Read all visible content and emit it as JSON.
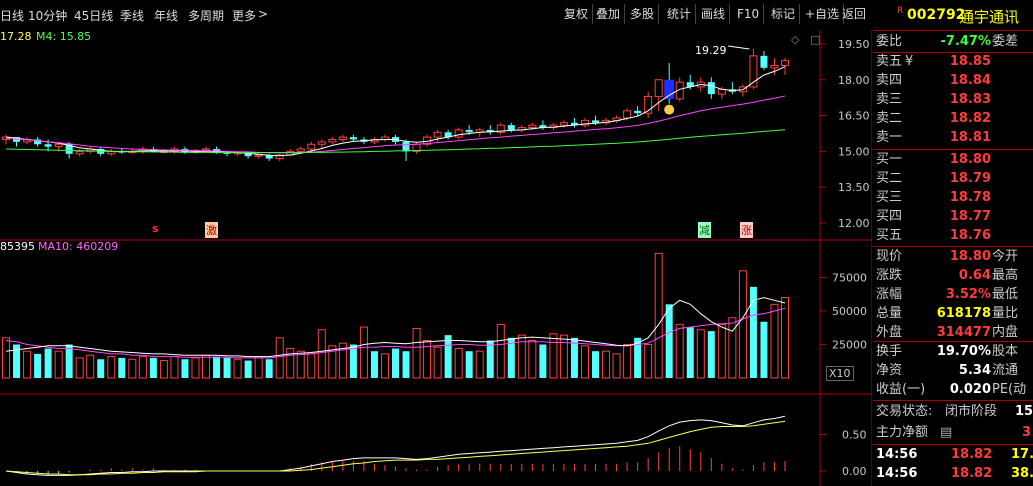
{
  "toolbar": {
    "periods": [
      "日线",
      "10分钟",
      "45日线",
      "季线",
      "年线",
      "多周期",
      "更多"
    ],
    "buttons": [
      "复权",
      "叠加",
      "多股",
      "统计",
      "画线",
      "F10",
      "标记",
      "+自选",
      "返回"
    ]
  },
  "price_chart": {
    "ma_legend_a": "17.28",
    "ma_legend_b": "M4: 15.85",
    "peak_label": "19.29",
    "marker_icons": [
      "s",
      "激",
      "减",
      "涨"
    ]
  },
  "volume_chart": {
    "legend_a": "85395",
    "legend_b": "MA10: 460209",
    "scale_note": "X10"
  },
  "chart_data": [
    {
      "type": "candlestick",
      "ylim": [
        11.5,
        20.0
      ],
      "yticks": [
        "19.50",
        "18.00",
        "16.50",
        "15.00",
        "13.50",
        "12.00"
      ],
      "candles": [
        [
          15.5,
          15.7,
          15.3,
          15.6
        ],
        [
          15.6,
          15.6,
          15.2,
          15.4
        ],
        [
          15.4,
          15.6,
          15.3,
          15.5
        ],
        [
          15.5,
          15.6,
          15.2,
          15.3
        ],
        [
          15.3,
          15.5,
          15.0,
          15.2
        ],
        [
          15.2,
          15.4,
          15.0,
          15.3
        ],
        [
          15.3,
          15.4,
          14.7,
          14.9
        ],
        [
          14.9,
          15.1,
          14.8,
          15.0
        ],
        [
          15.0,
          15.2,
          14.9,
          15.1
        ],
        [
          15.1,
          15.2,
          14.8,
          14.9
        ],
        [
          14.9,
          15.1,
          14.8,
          15.0
        ],
        [
          15.0,
          15.1,
          14.9,
          14.95
        ],
        [
          14.95,
          15.1,
          14.9,
          15.0
        ],
        [
          15.0,
          15.2,
          14.9,
          15.1
        ],
        [
          15.1,
          15.2,
          14.95,
          15.0
        ],
        [
          15.0,
          15.1,
          14.9,
          15.0
        ],
        [
          15.0,
          15.2,
          14.9,
          15.1
        ],
        [
          15.1,
          15.2,
          14.9,
          14.95
        ],
        [
          14.95,
          15.1,
          14.9,
          15.05
        ],
        [
          15.05,
          15.2,
          14.95,
          15.1
        ],
        [
          15.1,
          15.2,
          14.9,
          14.95
        ],
        [
          14.95,
          15.0,
          14.8,
          14.9
        ],
        [
          14.9,
          15.0,
          14.8,
          14.95
        ],
        [
          14.95,
          15.0,
          14.7,
          14.8
        ],
        [
          14.8,
          14.9,
          14.7,
          14.85
        ],
        [
          14.85,
          14.9,
          14.6,
          14.7
        ],
        [
          14.7,
          14.9,
          14.6,
          14.85
        ],
        [
          14.85,
          15.1,
          14.8,
          15.0
        ],
        [
          15.0,
          15.2,
          14.9,
          15.1
        ],
        [
          15.1,
          15.4,
          15.0,
          15.3
        ],
        [
          15.3,
          15.5,
          15.1,
          15.4
        ],
        [
          15.4,
          15.6,
          15.3,
          15.5
        ],
        [
          15.5,
          15.7,
          15.4,
          15.6
        ],
        [
          15.6,
          15.7,
          15.4,
          15.5
        ],
        [
          15.5,
          15.6,
          15.3,
          15.4
        ],
        [
          15.4,
          15.6,
          15.3,
          15.5
        ],
        [
          15.5,
          15.7,
          15.4,
          15.6
        ],
        [
          15.6,
          15.7,
          15.3,
          15.4
        ],
        [
          15.4,
          15.5,
          14.6,
          15.0
        ],
        [
          15.0,
          15.4,
          14.9,
          15.3
        ],
        [
          15.3,
          15.7,
          15.2,
          15.6
        ],
        [
          15.6,
          15.9,
          15.4,
          15.8
        ],
        [
          15.8,
          15.9,
          15.5,
          15.6
        ],
        [
          15.6,
          16.0,
          15.5,
          15.9
        ],
        [
          15.9,
          16.1,
          15.7,
          15.8
        ],
        [
          15.8,
          16.0,
          15.6,
          15.9
        ],
        [
          15.9,
          16.1,
          15.7,
          15.8
        ],
        [
          15.8,
          16.2,
          15.7,
          16.1
        ],
        [
          16.1,
          16.2,
          15.8,
          15.9
        ],
        [
          15.9,
          16.1,
          15.8,
          16.0
        ],
        [
          16.0,
          16.2,
          15.9,
          16.1
        ],
        [
          16.1,
          16.3,
          15.9,
          16.0
        ],
        [
          16.0,
          16.2,
          15.9,
          16.1
        ],
        [
          16.1,
          16.3,
          16.0,
          16.2
        ],
        [
          16.2,
          16.4,
          16.0,
          16.1
        ],
        [
          16.1,
          16.4,
          16.0,
          16.3
        ],
        [
          16.3,
          16.5,
          16.1,
          16.2
        ],
        [
          16.2,
          16.4,
          16.1,
          16.3
        ],
        [
          16.3,
          16.5,
          16.2,
          16.4
        ],
        [
          16.4,
          16.8,
          16.3,
          16.7
        ],
        [
          16.7,
          16.9,
          16.5,
          16.6
        ],
        [
          16.6,
          17.5,
          16.4,
          17.3
        ],
        [
          17.3,
          18.0,
          16.7,
          18.0
        ],
        [
          18.0,
          18.7,
          17.0,
          17.2
        ],
        [
          17.2,
          18.1,
          17.1,
          17.9
        ],
        [
          17.9,
          18.2,
          17.6,
          17.7
        ],
        [
          17.7,
          18.1,
          17.5,
          17.9
        ],
        [
          17.9,
          18.1,
          17.2,
          17.4
        ],
        [
          17.4,
          17.7,
          17.2,
          17.6
        ],
        [
          17.6,
          17.9,
          17.4,
          17.5
        ],
        [
          17.5,
          17.8,
          17.3,
          17.7
        ],
        [
          17.7,
          19.29,
          17.6,
          19.0
        ],
        [
          19.0,
          19.2,
          18.4,
          18.5
        ],
        [
          18.5,
          18.9,
          18.2,
          18.6
        ],
        [
          18.6,
          18.9,
          18.2,
          18.8
        ]
      ],
      "ma_short": [
        15.6,
        15.55,
        15.5,
        15.45,
        15.4,
        15.35,
        15.25,
        15.15,
        15.1,
        15.05,
        15.0,
        15.0,
        15.0,
        15.02,
        15.03,
        15.02,
        15.03,
        15.02,
        15.0,
        15.0,
        15.0,
        14.98,
        14.95,
        14.92,
        14.88,
        14.84,
        14.82,
        14.85,
        14.92,
        15.02,
        15.12,
        15.25,
        15.35,
        15.42,
        15.45,
        15.48,
        15.5,
        15.5,
        15.42,
        15.38,
        15.42,
        15.52,
        15.6,
        15.7,
        15.75,
        15.8,
        15.82,
        15.85,
        15.88,
        15.9,
        15.95,
        16.0,
        16.02,
        16.06,
        16.1,
        16.15,
        16.18,
        16.22,
        16.28,
        16.38,
        16.48,
        16.7,
        17.05,
        17.35,
        17.6,
        17.7,
        17.8,
        17.75,
        17.6,
        17.55,
        17.58,
        17.9,
        18.2,
        18.35,
        18.55
      ],
      "ma_mid": [
        15.55,
        15.52,
        15.48,
        15.45,
        15.4,
        15.37,
        15.32,
        15.27,
        15.22,
        15.18,
        15.15,
        15.12,
        15.1,
        15.08,
        15.07,
        15.06,
        15.05,
        15.05,
        15.04,
        15.03,
        15.02,
        15.0,
        14.99,
        14.98,
        14.96,
        14.95,
        14.94,
        14.94,
        14.95,
        14.97,
        15.0,
        15.04,
        15.08,
        15.12,
        15.16,
        15.2,
        15.24,
        15.27,
        15.28,
        15.3,
        15.33,
        15.37,
        15.41,
        15.45,
        15.49,
        15.53,
        15.57,
        15.6,
        15.64,
        15.67,
        15.71,
        15.74,
        15.78,
        15.81,
        15.85,
        15.88,
        15.92,
        15.95,
        15.99,
        16.04,
        16.09,
        16.17,
        16.27,
        16.38,
        16.5,
        16.6,
        16.7,
        16.78,
        16.85,
        16.92,
        16.98,
        17.06,
        17.15,
        17.23,
        17.32
      ],
      "ma_long": [
        15.1,
        15.09,
        15.08,
        15.07,
        15.06,
        15.05,
        15.04,
        15.03,
        15.02,
        15.01,
        15.0,
        14.99,
        14.99,
        14.98,
        14.98,
        14.97,
        14.97,
        14.96,
        14.96,
        14.96,
        14.95,
        14.95,
        14.95,
        14.95,
        14.95,
        14.95,
        14.95,
        14.95,
        14.95,
        14.96,
        14.96,
        14.97,
        14.97,
        14.98,
        14.99,
        15.0,
        15.01,
        15.02,
        15.03,
        15.04,
        15.05,
        15.06,
        15.07,
        15.08,
        15.1,
        15.11,
        15.13,
        15.14,
        15.16,
        15.17,
        15.19,
        15.21,
        15.22,
        15.24,
        15.26,
        15.28,
        15.3,
        15.32,
        15.34,
        15.37,
        15.4,
        15.43,
        15.47,
        15.51,
        15.55,
        15.59,
        15.63,
        15.66,
        15.7,
        15.73,
        15.76,
        15.8,
        15.84,
        15.87,
        15.91
      ]
    },
    {
      "type": "bar",
      "ylim": [
        0,
        100000
      ],
      "yticks": [
        "75000",
        "50000",
        "25000"
      ],
      "volumes": [
        30000,
        25000,
        20000,
        18000,
        22000,
        20000,
        25000,
        15000,
        17000,
        14000,
        16000,
        15000,
        14000,
        16000,
        15000,
        13000,
        16000,
        14000,
        15000,
        17000,
        16000,
        15000,
        14000,
        13000,
        16000,
        14000,
        30000,
        22000,
        20000,
        18000,
        36000,
        24000,
        26000,
        25000,
        38000,
        20000,
        18000,
        22000,
        20000,
        37000,
        28000,
        23000,
        32000,
        22000,
        20000,
        20000,
        28000,
        40000,
        30000,
        32000,
        28000,
        25000,
        33000,
        32000,
        30000,
        24000,
        20000,
        20000,
        18000,
        25000,
        30000,
        25000,
        93000,
        55000,
        40000,
        38000,
        36000,
        35000,
        40000,
        45000,
        80000,
        68000,
        42000,
        55000,
        60000
      ],
      "up": [
        true,
        false,
        true,
        false,
        false,
        true,
        false,
        true,
        true,
        false,
        true,
        false,
        true,
        true,
        false,
        true,
        true,
        false,
        true,
        true,
        false,
        false,
        true,
        false,
        true,
        false,
        true,
        true,
        true,
        true,
        true,
        true,
        true,
        false,
        true,
        false,
        true,
        false,
        false,
        true,
        true,
        true,
        false,
        true,
        false,
        true,
        false,
        true,
        false,
        true,
        true,
        false,
        true,
        true,
        false,
        true,
        false,
        true,
        true,
        true,
        false,
        true,
        true,
        false,
        true,
        false,
        true,
        false,
        true,
        true,
        true,
        false,
        false,
        true,
        true
      ],
      "ma": [
        28000,
        27000,
        25000,
        24000,
        23000,
        22000,
        22000,
        21000,
        20000,
        19000,
        18000,
        18000,
        17000,
        17000,
        16000,
        16000,
        16000,
        15500,
        15500,
        15500,
        15500,
        15500,
        15000,
        15000,
        15000,
        15000,
        16000,
        17000,
        17500,
        18000,
        19000,
        20000,
        21000,
        22000,
        23000,
        23000,
        23500,
        23500,
        23000,
        23000,
        23500,
        24000,
        24500,
        25000,
        25000,
        24500,
        24500,
        25000,
        26000,
        27000,
        27000,
        27000,
        26500,
        26500,
        26000,
        25500,
        25000,
        24500,
        24000,
        24000,
        25000,
        26000,
        30000,
        34000,
        37000,
        38000,
        39000,
        40000,
        40500,
        41000,
        44000,
        47000,
        48000,
        50000,
        52000
      ],
      "ma2": [
        20000,
        21000,
        22000,
        23000,
        24000,
        24000,
        24000,
        23000,
        22000,
        21000,
        20000,
        19500,
        19000,
        18500,
        18000,
        18000,
        17500,
        17000,
        17000,
        17000,
        17000,
        16500,
        16500,
        16000,
        16000,
        16000,
        17000,
        18000,
        18500,
        19000,
        20000,
        21000,
        22000,
        23000,
        25000,
        26000,
        26500,
        26000,
        25500,
        26500,
        27000,
        27500,
        28000,
        28000,
        27500,
        27000,
        27000,
        28000,
        29000,
        30000,
        30500,
        30000,
        29500,
        29000,
        28500,
        27500,
        26500,
        25500,
        24500,
        24000,
        26000,
        30000,
        40000,
        52000,
        58000,
        55000,
        48000,
        42000,
        38000,
        35000,
        45000,
        58000,
        60000,
        58000,
        56000
      ]
    },
    {
      "type": "line",
      "ylim": [
        -0.15,
        1.0
      ],
      "yticks": [
        "0.50",
        "0.00"
      ],
      "dif": [
        0.0,
        -0.02,
        -0.04,
        -0.05,
        -0.06,
        -0.06,
        -0.06,
        -0.05,
        -0.04,
        -0.03,
        -0.02,
        -0.02,
        -0.01,
        -0.01,
        0.0,
        0.0,
        0.0,
        0.0,
        0.0,
        0.0,
        0.0,
        0.0,
        0.0,
        0.0,
        0.0,
        0.0,
        0.0,
        0.02,
        0.04,
        0.07,
        0.1,
        0.13,
        0.15,
        0.17,
        0.18,
        0.18,
        0.18,
        0.18,
        0.17,
        0.16,
        0.17,
        0.19,
        0.21,
        0.23,
        0.24,
        0.25,
        0.26,
        0.27,
        0.28,
        0.29,
        0.3,
        0.31,
        0.32,
        0.33,
        0.34,
        0.35,
        0.36,
        0.37,
        0.38,
        0.4,
        0.42,
        0.47,
        0.55,
        0.62,
        0.67,
        0.69,
        0.7,
        0.69,
        0.66,
        0.63,
        0.62,
        0.66,
        0.7,
        0.72,
        0.75
      ],
      "dea": [
        0.0,
        -0.01,
        -0.02,
        -0.03,
        -0.04,
        -0.04,
        -0.05,
        -0.05,
        -0.05,
        -0.04,
        -0.04,
        -0.03,
        -0.03,
        -0.02,
        -0.02,
        -0.01,
        -0.01,
        -0.01,
        -0.01,
        0.0,
        0.0,
        0.0,
        0.0,
        0.0,
        0.0,
        0.0,
        0.0,
        0.0,
        0.01,
        0.02,
        0.04,
        0.06,
        0.08,
        0.1,
        0.11,
        0.13,
        0.14,
        0.15,
        0.15,
        0.15,
        0.16,
        0.16,
        0.17,
        0.18,
        0.19,
        0.2,
        0.21,
        0.22,
        0.23,
        0.24,
        0.25,
        0.26,
        0.27,
        0.28,
        0.29,
        0.3,
        0.31,
        0.32,
        0.33,
        0.34,
        0.36,
        0.38,
        0.42,
        0.46,
        0.5,
        0.54,
        0.57,
        0.6,
        0.61,
        0.61,
        0.61,
        0.62,
        0.64,
        0.66,
        0.68
      ]
    }
  ],
  "quote": {
    "tag": "R",
    "code": "002792",
    "name": "通宇通讯",
    "wb_label": "委比",
    "wb_value": "-7.47%",
    "wc_label": "委差",
    "asks": [
      {
        "label": "卖五",
        "mark": "¥",
        "price": "18.85"
      },
      {
        "label": "卖四",
        "price": "18.84"
      },
      {
        "label": "卖三",
        "price": "18.83"
      },
      {
        "label": "卖二",
        "price": "18.82"
      },
      {
        "label": "卖一",
        "price": "18.81"
      }
    ],
    "bids": [
      {
        "label": "买一",
        "price": "18.80"
      },
      {
        "label": "买二",
        "price": "18.79"
      },
      {
        "label": "买三",
        "price": "18.78"
      },
      {
        "label": "买四",
        "price": "18.77"
      },
      {
        "label": "买五",
        "price": "18.76"
      }
    ],
    "stats": [
      {
        "k": "现价",
        "v": "18.80",
        "k2": "今开"
      },
      {
        "k": "涨跌",
        "v": "0.64",
        "k2": "最高"
      },
      {
        "k": "涨幅",
        "v": "3.52%",
        "k2": "最低"
      },
      {
        "k": "总量",
        "v": "618178",
        "k2": "量比"
      },
      {
        "k": "外盘",
        "v": "314477",
        "k2": "内盘"
      }
    ],
    "stats2": [
      {
        "k": "换手",
        "v": "19.70%",
        "k2": "股本"
      },
      {
        "k": "净资",
        "v": "5.34",
        "k2": "流通"
      },
      {
        "k": "收益(一)",
        "v": "0.020",
        "k2": "PE(动"
      }
    ],
    "status_label": "交易状态:",
    "status_value": "闭市阶段",
    "status_extra": "15",
    "flow_label": "主力净额",
    "flow_value": "3",
    "ticks": [
      {
        "time": "14:56",
        "price": "18.82",
        "vol": "17."
      },
      {
        "time": "14:56",
        "price": "18.82",
        "vol": "38."
      }
    ]
  }
}
